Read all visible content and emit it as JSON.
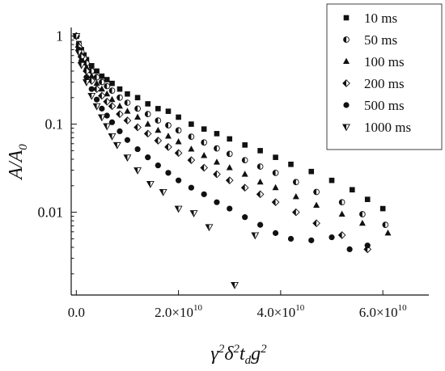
{
  "chart_data": {
    "type": "scatter",
    "title": "",
    "xlabel": "γ²δ²t_d g²",
    "ylabel": "A/A₀",
    "x_scale": "linear",
    "y_scale": "log",
    "xlim": [
      -1000000000.0,
      69000000000.0
    ],
    "ylim": [
      0.00115,
      1.25
    ],
    "x_ticks": [
      0,
      20000000000.0,
      40000000000.0,
      60000000000.0
    ],
    "x_tick_labels": [
      {
        "mantissa": "0.0",
        "exponent": ""
      },
      {
        "mantissa": "2.0×10",
        "exponent": "10"
      },
      {
        "mantissa": "4.0×10",
        "exponent": "10"
      },
      {
        "mantissa": "6.0×10",
        "exponent": "10"
      }
    ],
    "y_ticks": [
      0.01,
      0.1,
      1
    ],
    "y_tick_labels": [
      "0.01",
      "0.1",
      "1"
    ],
    "legend_placement": "top-right",
    "series": [
      {
        "name": "10 ms",
        "marker": "square",
        "x": [
          0.0,
          500000000.0,
          1000000000.0,
          1500000000.0,
          2000000000.0,
          3000000000.0,
          4000000000.0,
          5000000000.0,
          6000000000.0,
          7000000000.0,
          8500000000.0,
          10000000000.0,
          12000000000.0,
          14000000000.0,
          16000000000.0,
          18000000000.0,
          20000000000.0,
          22500000000.0,
          25000000000.0,
          27500000000.0,
          30000000000.0,
          33000000000.0,
          36000000000.0,
          39000000000.0,
          42000000000.0,
          46000000000.0,
          50000000000.0,
          54000000000.0,
          57000000000.0,
          60000000000.0
        ],
        "y": [
          1.0,
          0.82,
          0.7,
          0.61,
          0.54,
          0.46,
          0.4,
          0.35,
          0.32,
          0.29,
          0.25,
          0.22,
          0.2,
          0.17,
          0.15,
          0.14,
          0.12,
          0.1,
          0.088,
          0.078,
          0.068,
          0.058,
          0.05,
          0.042,
          0.035,
          0.029,
          0.023,
          0.018,
          0.014,
          0.011
        ]
      },
      {
        "name": "50 ms",
        "marker": "circle-half",
        "x": [
          0.0,
          500000000.0,
          1000000000.0,
          1500000000.0,
          2000000000.0,
          3000000000.0,
          4000000000.0,
          5000000000.0,
          6000000000.0,
          7000000000.0,
          8500000000.0,
          10000000000.0,
          12000000000.0,
          14000000000.0,
          16000000000.0,
          18000000000.0,
          20000000000.0,
          22500000000.0,
          25000000000.0,
          27500000000.0,
          30000000000.0,
          33000000000.0,
          36000000000.0,
          39000000000.0,
          43000000000.0,
          47000000000.0,
          52000000000.0,
          56000000000.0,
          60500000000.0
        ],
        "y": [
          1.0,
          0.8,
          0.66,
          0.56,
          0.49,
          0.4,
          0.34,
          0.3,
          0.27,
          0.24,
          0.2,
          0.175,
          0.15,
          0.13,
          0.11,
          0.097,
          0.085,
          0.072,
          0.062,
          0.053,
          0.046,
          0.039,
          0.033,
          0.028,
          0.022,
          0.017,
          0.013,
          0.0095,
          0.0072
        ]
      },
      {
        "name": "100 ms",
        "marker": "triangle-up",
        "x": [
          0.0,
          500000000.0,
          1000000000.0,
          2000000000.0,
          3000000000.0,
          4000000000.0,
          5000000000.0,
          6000000000.0,
          7000000000.0,
          8500000000.0,
          10000000000.0,
          12000000000.0,
          14000000000.0,
          16000000000.0,
          18000000000.0,
          20000000000.0,
          22500000000.0,
          25000000000.0,
          27500000000.0,
          30000000000.0,
          33000000000.0,
          36000000000.0,
          39000000000.0,
          43000000000.0,
          47000000000.0,
          52000000000.0,
          56000000000.0,
          61000000000.0
        ],
        "y": [
          1.0,
          0.78,
          0.62,
          0.44,
          0.35,
          0.29,
          0.25,
          0.22,
          0.19,
          0.16,
          0.14,
          0.12,
          0.1,
          0.085,
          0.073,
          0.063,
          0.052,
          0.044,
          0.037,
          0.032,
          0.027,
          0.022,
          0.019,
          0.015,
          0.012,
          0.0095,
          0.0075,
          0.0058
        ]
      },
      {
        "name": "200 ms",
        "marker": "diamond-half",
        "x": [
          0.0,
          500000000.0,
          1000000000.0,
          2000000000.0,
          3000000000.0,
          4000000000.0,
          5000000000.0,
          6000000000.0,
          7000000000.0,
          8500000000.0,
          10000000000.0,
          12000000000.0,
          14000000000.0,
          16000000000.0,
          18000000000.0,
          20000000000.0,
          22500000000.0,
          25000000000.0,
          27500000000.0,
          30000000000.0,
          33000000000.0,
          36000000000.0,
          39000000000.0,
          43000000000.0,
          47000000000.0,
          52000000000.0,
          57000000000.0
        ],
        "y": [
          1.0,
          0.75,
          0.58,
          0.4,
          0.31,
          0.25,
          0.21,
          0.18,
          0.16,
          0.13,
          0.11,
          0.092,
          0.078,
          0.065,
          0.055,
          0.047,
          0.039,
          0.032,
          0.027,
          0.023,
          0.019,
          0.016,
          0.013,
          0.01,
          0.0075,
          0.0055,
          0.0038
        ]
      },
      {
        "name": "500 ms",
        "marker": "circle",
        "x": [
          0.0,
          500000000.0,
          1000000000.0,
          2000000000.0,
          3000000000.0,
          4000000000.0,
          5000000000.0,
          6000000000.0,
          7000000000.0,
          8500000000.0,
          10000000000.0,
          12000000000.0,
          14000000000.0,
          16000000000.0,
          18000000000.0,
          20000000000.0,
          22500000000.0,
          25000000000.0,
          27500000000.0,
          30000000000.0,
          33000000000.0,
          36000000000.0,
          39000000000.0,
          42000000000.0,
          46000000000.0,
          50000000000.0,
          53500000000.0,
          57000000000.0
        ],
        "y": [
          1.0,
          0.7,
          0.52,
          0.34,
          0.25,
          0.19,
          0.15,
          0.125,
          0.105,
          0.083,
          0.066,
          0.052,
          0.042,
          0.034,
          0.028,
          0.023,
          0.019,
          0.016,
          0.013,
          0.011,
          0.0088,
          0.0072,
          0.0058,
          0.005,
          0.0048,
          0.0052,
          0.0038,
          0.0042
        ]
      },
      {
        "name": "1000 ms",
        "marker": "triangle-down-half",
        "x": [
          0.0,
          500000000.0,
          1000000000.0,
          2000000000.0,
          3000000000.0,
          4000000000.0,
          5000000000.0,
          6000000000.0,
          7000000000.0,
          8000000000.0,
          10000000000.0,
          12000000000.0,
          14500000000.0,
          17000000000.0,
          20000000000.0,
          23000000000.0,
          26000000000.0,
          31000000000.0,
          35000000000.0
        ],
        "y": [
          1.0,
          0.65,
          0.47,
          0.3,
          0.21,
          0.16,
          0.12,
          0.095,
          0.073,
          0.058,
          0.042,
          0.03,
          0.021,
          0.017,
          0.011,
          0.0098,
          0.0068,
          0.0015,
          0.0055
        ]
      }
    ]
  }
}
